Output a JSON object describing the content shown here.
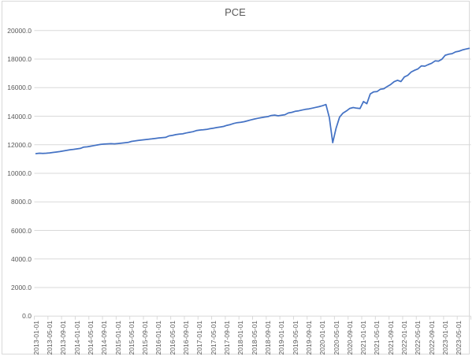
{
  "chart_data": {
    "type": "line",
    "title": "PCE",
    "xlabel": "",
    "ylabel": "",
    "legend": "none",
    "grid": "horizontal",
    "ylim": [
      0,
      20000
    ],
    "ytick_interval": 2000,
    "ytick_format_example": "20000.0",
    "xlabel_interval": 4,
    "x": [
      "2013-01-01",
      "2013-02-01",
      "2013-03-01",
      "2013-04-01",
      "2013-05-01",
      "2013-06-01",
      "2013-07-01",
      "2013-08-01",
      "2013-09-01",
      "2013-10-01",
      "2013-11-01",
      "2013-12-01",
      "2014-01-01",
      "2014-02-01",
      "2014-03-01",
      "2014-04-01",
      "2014-05-01",
      "2014-06-01",
      "2014-07-01",
      "2014-08-01",
      "2014-09-01",
      "2014-10-01",
      "2014-11-01",
      "2014-12-01",
      "2015-01-01",
      "2015-02-01",
      "2015-03-01",
      "2015-04-01",
      "2015-05-01",
      "2015-06-01",
      "2015-07-01",
      "2015-08-01",
      "2015-09-01",
      "2015-10-01",
      "2015-11-01",
      "2015-12-01",
      "2016-01-01",
      "2016-02-01",
      "2016-03-01",
      "2016-04-01",
      "2016-05-01",
      "2016-06-01",
      "2016-07-01",
      "2016-08-01",
      "2016-09-01",
      "2016-10-01",
      "2016-11-01",
      "2016-12-01",
      "2017-01-01",
      "2017-02-01",
      "2017-03-01",
      "2017-04-01",
      "2017-05-01",
      "2017-06-01",
      "2017-07-01",
      "2017-08-01",
      "2017-09-01",
      "2017-10-01",
      "2017-11-01",
      "2017-12-01",
      "2018-01-01",
      "2018-02-01",
      "2018-03-01",
      "2018-04-01",
      "2018-05-01",
      "2018-06-01",
      "2018-07-01",
      "2018-08-01",
      "2018-09-01",
      "2018-10-01",
      "2018-11-01",
      "2018-12-01",
      "2019-01-01",
      "2019-02-01",
      "2019-03-01",
      "2019-04-01",
      "2019-05-01",
      "2019-06-01",
      "2019-07-01",
      "2019-08-01",
      "2019-09-01",
      "2019-10-01",
      "2019-11-01",
      "2019-12-01",
      "2020-01-01",
      "2020-02-01",
      "2020-03-01",
      "2020-04-01",
      "2020-05-01",
      "2020-06-01",
      "2020-07-01",
      "2020-08-01",
      "2020-09-01",
      "2020-10-01",
      "2020-11-01",
      "2020-12-01",
      "2021-01-01",
      "2021-02-01",
      "2021-03-01",
      "2021-04-01",
      "2021-05-01",
      "2021-06-01",
      "2021-07-01",
      "2021-08-01",
      "2021-09-01",
      "2021-10-01",
      "2021-11-01",
      "2021-12-01",
      "2022-01-01",
      "2022-02-01",
      "2022-03-01",
      "2022-04-01",
      "2022-05-01",
      "2022-06-01",
      "2022-07-01",
      "2022-08-01",
      "2022-09-01",
      "2022-10-01",
      "2022-11-01",
      "2022-12-01",
      "2023-01-01",
      "2023-02-01",
      "2023-03-01",
      "2023-04-01",
      "2023-05-01",
      "2023-06-01",
      "2023-07-01",
      "2023-08-01"
    ],
    "series": [
      {
        "name": "PCE",
        "values": [
          11380,
          11405,
          11395,
          11405,
          11430,
          11460,
          11490,
          11525,
          11565,
          11605,
          11650,
          11680,
          11710,
          11745,
          11840,
          11855,
          11900,
          11940,
          11985,
          12025,
          12045,
          12065,
          12075,
          12065,
          12085,
          12115,
          12140,
          12165,
          12235,
          12265,
          12305,
          12335,
          12360,
          12385,
          12410,
          12445,
          12480,
          12500,
          12515,
          12620,
          12655,
          12710,
          12750,
          12765,
          12825,
          12870,
          12915,
          12990,
          13030,
          13045,
          13075,
          13120,
          13160,
          13205,
          13245,
          13285,
          13360,
          13415,
          13490,
          13545,
          13575,
          13615,
          13675,
          13740,
          13800,
          13850,
          13895,
          13940,
          13975,
          14050,
          14075,
          14030,
          14065,
          14105,
          14225,
          14270,
          14340,
          14375,
          14430,
          14480,
          14515,
          14565,
          14620,
          14665,
          14735,
          14815,
          13900,
          12145,
          13165,
          13935,
          14215,
          14365,
          14545,
          14605,
          14565,
          14535,
          15025,
          14875,
          15555,
          15705,
          15725,
          15895,
          15925,
          16085,
          16225,
          16415,
          16515,
          16425,
          16745,
          16865,
          17095,
          17215,
          17315,
          17525,
          17505,
          17615,
          17705,
          17875,
          17855,
          17990,
          18270,
          18340,
          18380,
          18500,
          18550,
          18640,
          18700,
          18750
        ]
      }
    ],
    "colors": {
      "line": "#4472C4",
      "gridline": "#D9D9D9",
      "axis_line": "#D9D9D9",
      "axis_text": "#595959",
      "title_text": "#595959",
      "chart_border": "#D9D9D9"
    }
  }
}
